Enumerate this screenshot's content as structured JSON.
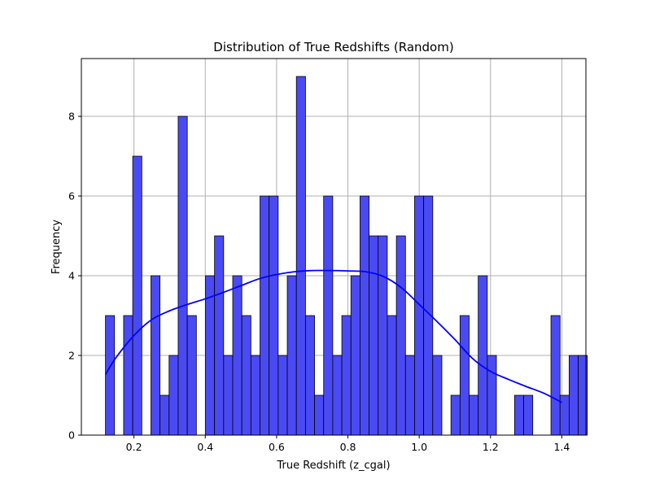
{
  "chart_data": {
    "type": "bar",
    "title": "Distribution of True Redshifts (Random)",
    "xlabel": "True Redshift (z_cgal)",
    "ylabel": "Frequency",
    "xlim": [
      0.0525,
      1.4675
    ],
    "ylim": [
      0,
      9.45
    ],
    "xticks": [
      0.2,
      0.4,
      0.6,
      0.8,
      1.0,
      1.2,
      1.4
    ],
    "xtick_labels": [
      "0.2",
      "0.4",
      "0.6",
      "0.8",
      "1.0",
      "1.2",
      "1.4"
    ],
    "yticks": [
      0,
      2,
      4,
      6,
      8
    ],
    "ytick_labels": [
      "0",
      "2",
      "4",
      "6",
      "8"
    ],
    "grid": true,
    "bar_color": "#4a4af5",
    "kde_color": "#0000ff",
    "bins": {
      "start": 0.12,
      "width": 0.0255,
      "counts": [
        3,
        0,
        3,
        7,
        0,
        4,
        1,
        2,
        8,
        3,
        0,
        4,
        5,
        2,
        4,
        3,
        2,
        6,
        6,
        2,
        4,
        9,
        3,
        1,
        6,
        2,
        3,
        4,
        6,
        5,
        5,
        3,
        5,
        2,
        6,
        6,
        2,
        0,
        1,
        3,
        1,
        4,
        2,
        0,
        0,
        1,
        1,
        0,
        0,
        3,
        1,
        2,
        2
      ]
    },
    "kde": {
      "x": [
        0.12,
        0.15,
        0.2,
        0.25,
        0.3,
        0.35,
        0.4,
        0.45,
        0.5,
        0.55,
        0.6,
        0.65,
        0.7,
        0.75,
        0.8,
        0.85,
        0.9,
        0.95,
        1.0,
        1.05,
        1.1,
        1.15,
        1.2,
        1.25,
        1.3,
        1.35,
        1.4
      ],
      "y": [
        1.52,
        1.95,
        2.5,
        2.9,
        3.12,
        3.28,
        3.42,
        3.58,
        3.75,
        3.92,
        4.03,
        4.1,
        4.13,
        4.13,
        4.12,
        4.1,
        3.98,
        3.7,
        3.28,
        2.85,
        2.4,
        1.92,
        1.6,
        1.4,
        1.22,
        1.05,
        0.82
      ]
    }
  }
}
